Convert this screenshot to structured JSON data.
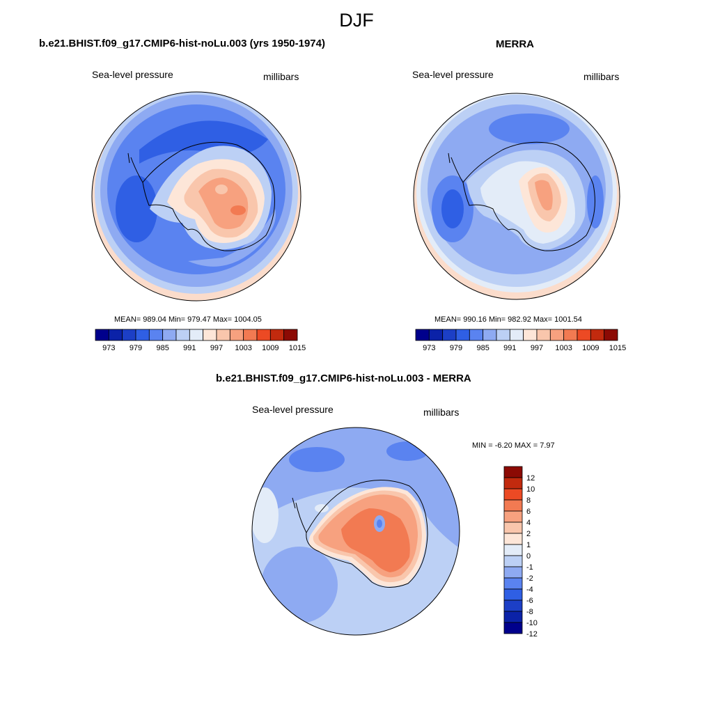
{
  "figure": {
    "title": "DJF"
  },
  "panels": [
    {
      "id": "model",
      "title": "b.e21.BHIST.f09_g17.CMIP6-hist-noLu.003 (yrs 1950-1974)",
      "left_label": "Sea-level pressure",
      "right_label": "millibars",
      "stats": "MEAN= 989.04  Min= 979.47  Max= 1004.05"
    },
    {
      "id": "merra",
      "title": "MERRA",
      "left_label": "Sea-level pressure",
      "right_label": "millibars",
      "stats": "MEAN= 990.16  Min= 982.92  Max= 1001.54"
    },
    {
      "id": "diff",
      "title": "b.e21.BHIST.f09_g17.CMIP6-hist-noLu.003 - MERRA",
      "left_label": "Sea-level pressure",
      "right_label": "millibars",
      "stats": "MIN =  -6.20 MAX =   7.97"
    }
  ],
  "colorbars": {
    "abs": {
      "colors": [
        "#00008c",
        "#0b22a8",
        "#1c3fc6",
        "#2f5fe4",
        "#5a83f0",
        "#8eaaf2",
        "#bcd0f5",
        "#e3ecf8",
        "#fde6d8",
        "#f9c6ac",
        "#f7a17f",
        "#f27a52",
        "#ec4a24",
        "#c22a0e",
        "#8c0a04"
      ],
      "tick_labels": [
        "973",
        "979",
        "985",
        "991",
        "997",
        "1003",
        "1009",
        "1015"
      ]
    },
    "diff": {
      "colors": [
        "#00008c",
        "#0b22a8",
        "#1c3fc6",
        "#2f5fe4",
        "#5a83f0",
        "#8eaaf2",
        "#bcd0f5",
        "#e3ecf8",
        "#fde6d8",
        "#f9c6ac",
        "#f7a17f",
        "#f27a52",
        "#ec4a24",
        "#c22a0e",
        "#8c0a04"
      ],
      "tick_labels": [
        "12",
        "10",
        "8",
        "6",
        "4",
        "2",
        "1",
        "0",
        "-1",
        "-2",
        "-4",
        "-6",
        "-8",
        "-10",
        "-12"
      ]
    }
  }
}
